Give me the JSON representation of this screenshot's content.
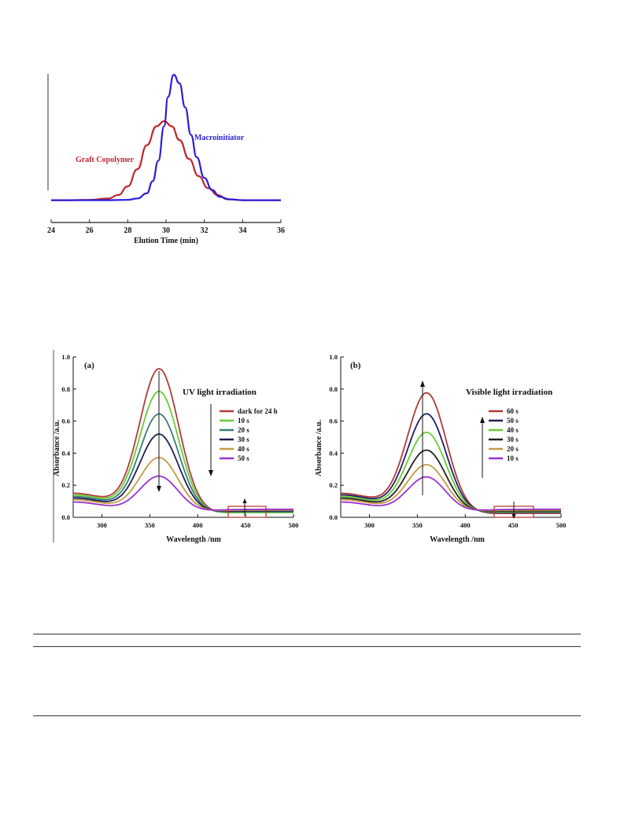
{
  "chart_data": [
    {
      "type": "line",
      "xlabel": "Elution Time (min)",
      "ylabel": "",
      "xlim": [
        24,
        36
      ],
      "xticks": [
        24,
        26,
        28,
        30,
        32,
        34,
        36
      ],
      "series": [
        {
          "name": "Graft Copolymer",
          "color": "#c0272d",
          "x": [
            24,
            25,
            26,
            27,
            27.5,
            28,
            28.5,
            29,
            29.5,
            29.9,
            30.3,
            30.7,
            31.2,
            31.7,
            32.2,
            32.7,
            33.2,
            34,
            35,
            36
          ],
          "y": [
            0.02,
            0.02,
            0.022,
            0.03,
            0.05,
            0.1,
            0.2,
            0.34,
            0.45,
            0.48,
            0.45,
            0.37,
            0.26,
            0.16,
            0.09,
            0.05,
            0.025,
            0.02,
            0.02,
            0.02
          ]
        },
        {
          "name": "Macroinitiator",
          "color": "#2b1ed8",
          "x": [
            24,
            27,
            28,
            28.5,
            29,
            29.3,
            29.6,
            29.9,
            30.1,
            30.4,
            30.7,
            31,
            31.3,
            31.6,
            32,
            32.4,
            32.8,
            33.3,
            34,
            35,
            36
          ],
          "y": [
            0.02,
            0.02,
            0.022,
            0.03,
            0.06,
            0.13,
            0.25,
            0.45,
            0.62,
            0.75,
            0.7,
            0.56,
            0.4,
            0.27,
            0.15,
            0.08,
            0.04,
            0.025,
            0.02,
            0.02,
            0.02
          ]
        }
      ]
    },
    {
      "type": "line",
      "panel_label": "(a)",
      "annotation": "UV light irradiation",
      "xlabel": "Wavelength /nm",
      "ylabel": "Absorbance /a.u.",
      "xlim": [
        270,
        500
      ],
      "ylim": [
        0,
        1.0
      ],
      "xticks": [
        300,
        350,
        400,
        450,
        500
      ],
      "yticks": [
        "0.0",
        "0.2",
        "0.4",
        "0.6",
        "0.8",
        "1.0"
      ],
      "series": [
        {
          "name": "dark for 24 h",
          "color": "#b13a3a",
          "peak": 0.91,
          "base": 0.15,
          "tail": 0.03
        },
        {
          "name": "10 s",
          "color": "#66cc33",
          "peak": 0.77,
          "base": 0.14,
          "tail": 0.03
        },
        {
          "name": "20 s",
          "color": "#3a7a7a",
          "peak": 0.63,
          "base": 0.13,
          "tail": 0.035
        },
        {
          "name": "30 s",
          "color": "#1f1f55",
          "peak": 0.505,
          "base": 0.12,
          "tail": 0.04
        },
        {
          "name": "40 s",
          "color": "#c49a44",
          "peak": 0.36,
          "base": 0.11,
          "tail": 0.045
        },
        {
          "name": "50 s",
          "color": "#9933cc",
          "peak": 0.245,
          "base": 0.095,
          "tail": 0.05
        }
      ]
    },
    {
      "type": "line",
      "panel_label": "(b)",
      "annotation": "Visible light irradiation",
      "xlabel": "Wavelength /nm",
      "ylabel": "Absorbance /a.u.",
      "xlim": [
        270,
        500
      ],
      "ylim": [
        0,
        1.0
      ],
      "xticks": [
        300,
        350,
        400,
        450,
        500
      ],
      "yticks": [
        "0.0",
        "0.2",
        "0.4",
        "0.6",
        "0.8",
        "1.0"
      ],
      "series": [
        {
          "name": "60 s",
          "color": "#b13a3a",
          "peak": 0.76,
          "base": 0.15,
          "tail": 0.025
        },
        {
          "name": "50 s",
          "color": "#1f1f66",
          "peak": 0.63,
          "base": 0.14,
          "tail": 0.03
        },
        {
          "name": "40 s",
          "color": "#66cc33",
          "peak": 0.515,
          "base": 0.13,
          "tail": 0.035
        },
        {
          "name": "30 s",
          "color": "#222222",
          "peak": 0.405,
          "base": 0.12,
          "tail": 0.04
        },
        {
          "name": "20 s",
          "color": "#c49a44",
          "peak": 0.315,
          "base": 0.11,
          "tail": 0.045
        },
        {
          "name": "10 s",
          "color": "#9933cc",
          "peak": 0.24,
          "base": 0.095,
          "tail": 0.05
        }
      ]
    }
  ]
}
